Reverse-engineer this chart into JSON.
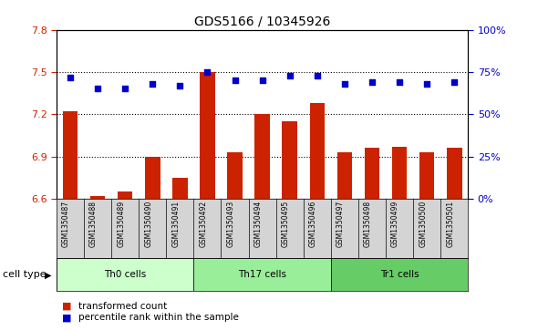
{
  "title": "GDS5166 / 10345926",
  "samples": [
    "GSM1350487",
    "GSM1350488",
    "GSM1350489",
    "GSM1350490",
    "GSM1350491",
    "GSM1350492",
    "GSM1350493",
    "GSM1350494",
    "GSM1350495",
    "GSM1350496",
    "GSM1350497",
    "GSM1350498",
    "GSM1350499",
    "GSM1350500",
    "GSM1350501"
  ],
  "transformed_count": [
    7.22,
    6.62,
    6.65,
    6.9,
    6.75,
    7.5,
    6.93,
    7.2,
    7.15,
    7.28,
    6.93,
    6.96,
    6.97,
    6.93,
    6.96
  ],
  "percentile_rank": [
    72,
    65,
    65,
    68,
    67,
    75,
    70,
    70,
    73,
    73,
    68,
    69,
    69,
    68,
    69
  ],
  "cell_types": [
    {
      "label": "Th0 cells",
      "start": 0,
      "end": 5,
      "color": "#ccffcc"
    },
    {
      "label": "Th17 cells",
      "start": 5,
      "end": 10,
      "color": "#99ee99"
    },
    {
      "label": "Tr1 cells",
      "start": 10,
      "end": 15,
      "color": "#66cc66"
    }
  ],
  "ylim_left": [
    6.6,
    7.8
  ],
  "ylim_right": [
    0,
    100
  ],
  "yticks_left": [
    6.6,
    6.9,
    7.2,
    7.5,
    7.8
  ],
  "yticks_right": [
    0,
    25,
    50,
    75,
    100
  ],
  "bar_color": "#cc2200",
  "dot_color": "#0000cc",
  "sample_label_bg": "#d4d4d4",
  "plot_bg_color": "#ffffff",
  "cell_type_label": "cell type"
}
